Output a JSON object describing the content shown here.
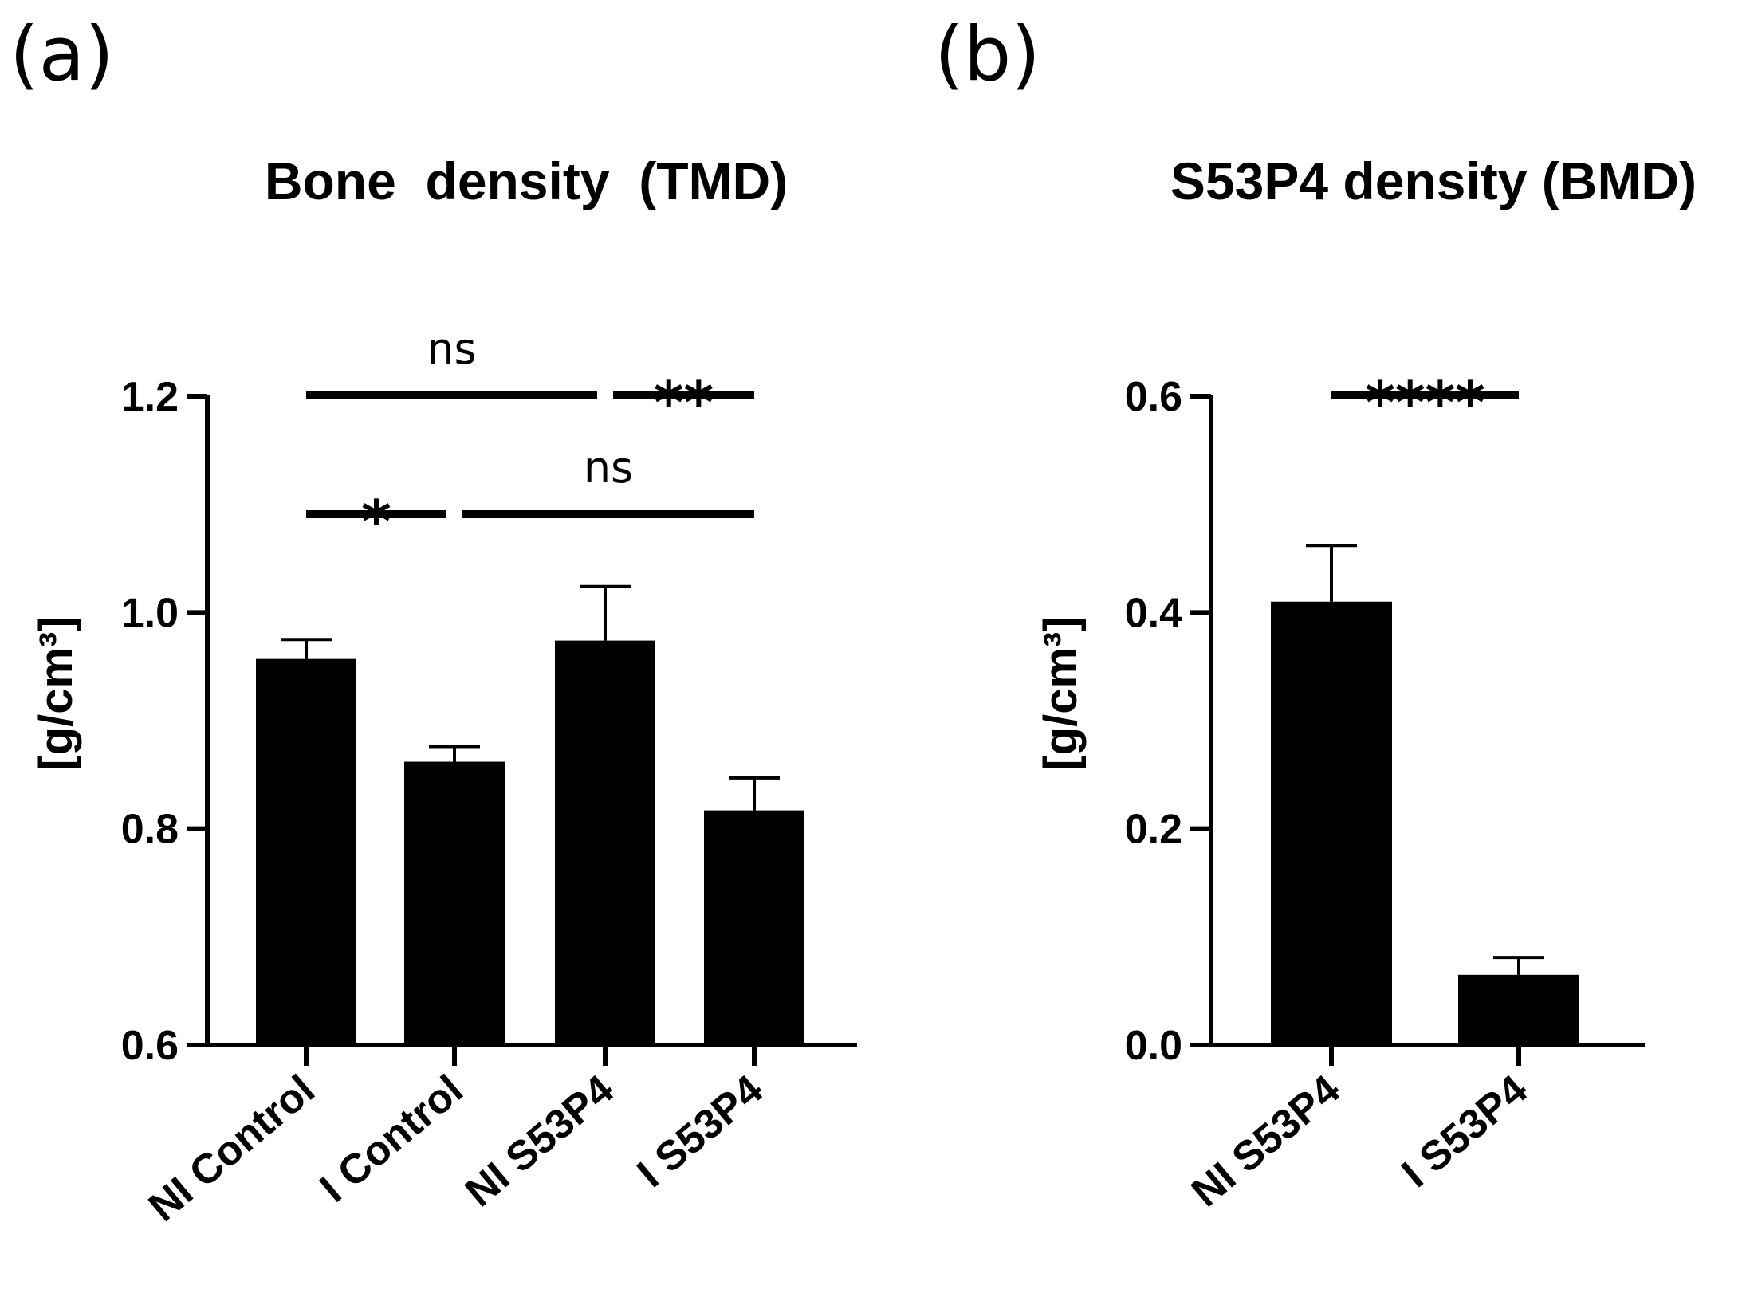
{
  "chart_data": [
    {
      "panel": "(a)",
      "type": "bar",
      "title": "Bone  density  (TMD)",
      "ylabel": "[g/cm³]",
      "xlabel": "",
      "ylim": [
        0.6,
        1.2
      ],
      "yticks": [
        0.6,
        0.8,
        1.0,
        1.2
      ],
      "ytick_labels": [
        "0.6",
        "0.8",
        "1.0",
        "1.2"
      ],
      "categories": [
        "NI Control",
        "I Control",
        "NI S53P4",
        "I S53P4"
      ],
      "values": [
        0.957,
        0.862,
        0.974,
        0.817
      ],
      "errors": [
        0.018,
        0.014,
        0.05,
        0.03
      ],
      "bar_color": "#000000",
      "significance": [
        {
          "from": 0,
          "to": 2,
          "label": "ns",
          "level": 2
        },
        {
          "from": 2,
          "to": 3,
          "label": "**",
          "level": 2
        },
        {
          "from": 0,
          "to": 1,
          "label": "*",
          "level": 1
        },
        {
          "from": 1,
          "to": 3,
          "label": "ns",
          "level": 1
        }
      ]
    },
    {
      "panel": "(b)",
      "type": "bar",
      "title": "S53P4 density (BMD)",
      "ylabel": "[g/cm³]",
      "xlabel": "",
      "ylim": [
        0.0,
        0.6
      ],
      "yticks": [
        0.0,
        0.2,
        0.4,
        0.6
      ],
      "ytick_labels": [
        "0.0",
        "0.2",
        "0.4",
        "0.6"
      ],
      "categories": [
        "NI S53P4",
        "I S53P4"
      ],
      "values": [
        0.41,
        0.065
      ],
      "errors": [
        0.052,
        0.016
      ],
      "bar_color": "#000000",
      "significance": [
        {
          "from": 0,
          "to": 1,
          "label": "****",
          "level": 1
        }
      ]
    }
  ]
}
